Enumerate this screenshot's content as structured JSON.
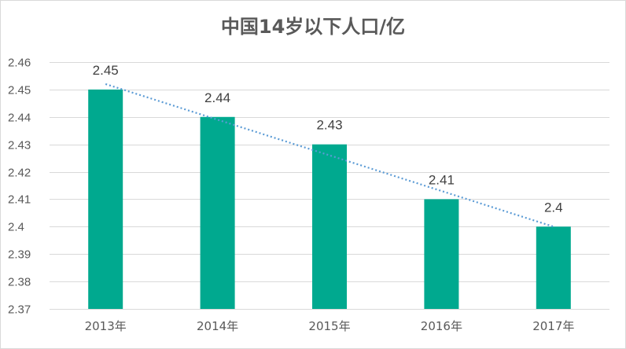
{
  "chart_data": {
    "type": "bar",
    "title": "中国14岁以下人口/亿",
    "xlabel": "",
    "ylabel": "",
    "categories": [
      "2013年",
      "2014年",
      "2015年",
      "2016年",
      "2017年"
    ],
    "values": [
      2.45,
      2.44,
      2.43,
      2.41,
      2.4
    ],
    "data_labels": [
      "2.45",
      "2.44",
      "2.43",
      "2.41",
      "2.4"
    ],
    "ylim": [
      2.37,
      2.46
    ],
    "yticks": [
      2.46,
      2.45,
      2.44,
      2.43,
      2.42,
      2.41,
      2.4,
      2.39,
      2.38,
      2.37
    ],
    "ytick_labels": [
      "2.46",
      "2.45",
      "2.44",
      "2.43",
      "2.42",
      "2.41",
      "2.4",
      "2.39",
      "2.38",
      "2.37"
    ],
    "grid": true,
    "legend": "none",
    "trendline": {
      "type": "linear",
      "style": "dotted",
      "color": "#5b9bd5"
    },
    "bar_color": "#00a98f"
  }
}
